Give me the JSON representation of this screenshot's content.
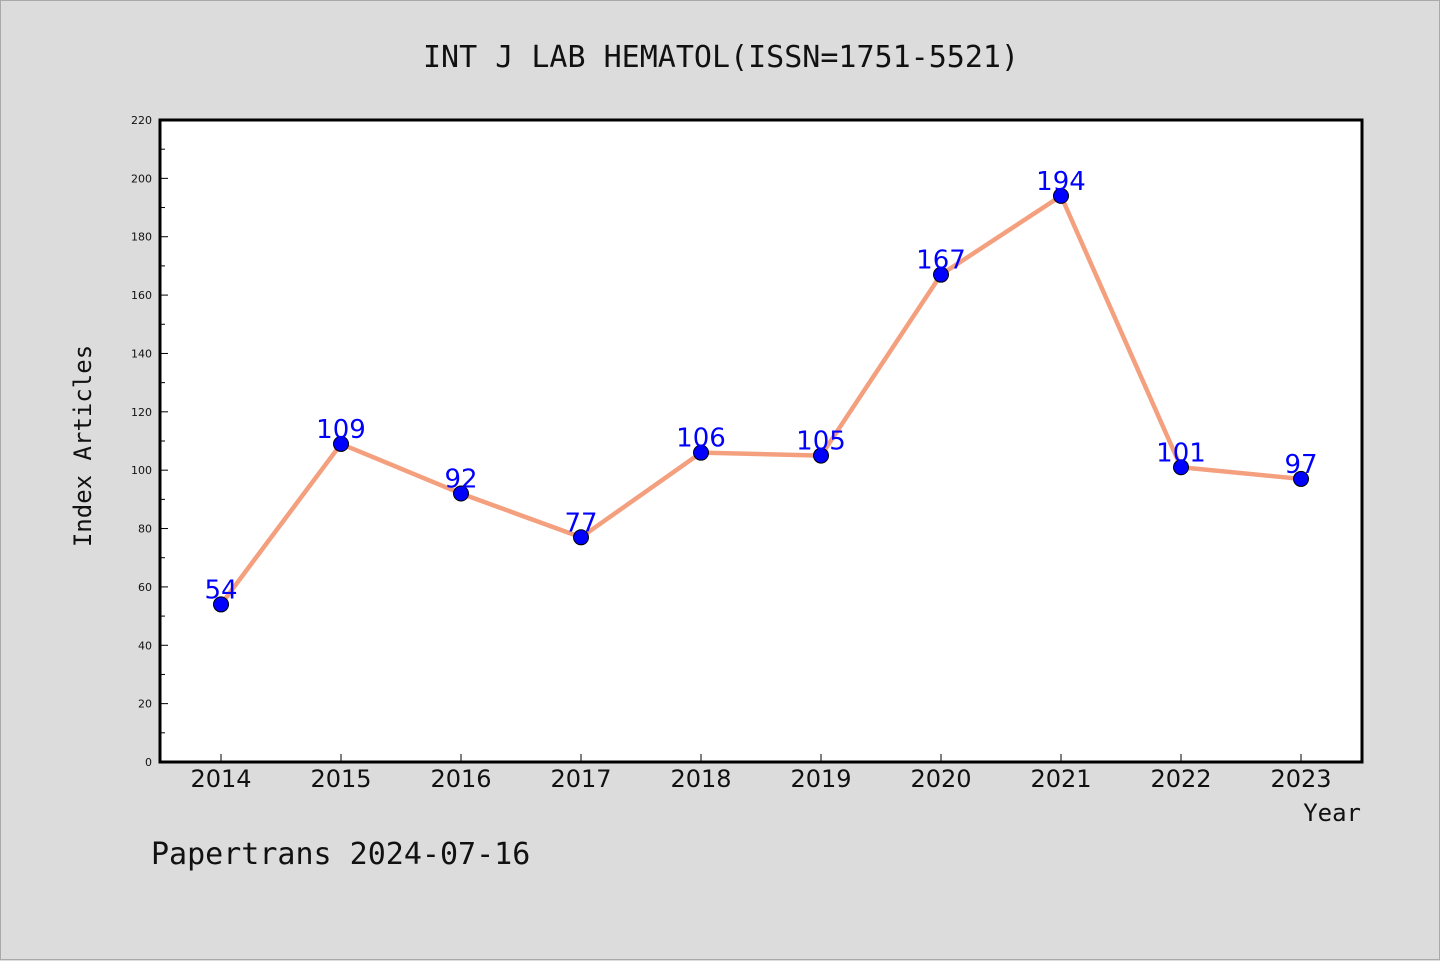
{
  "footer": "Papertrans 2024-07-16",
  "colors": {
    "background": "#dcdcdc",
    "plot_bg": "#ffffff",
    "line": "#f4a07e",
    "marker": "#0000ff",
    "label": "#0000ff"
  },
  "chart_data": {
    "type": "line",
    "title": "INT J LAB HEMATOL(ISSN=1751-5521)",
    "xlabel": "Year",
    "ylabel": "Index Articles",
    "categories": [
      "2014",
      "2015",
      "2016",
      "2017",
      "2018",
      "2019",
      "2020",
      "2021",
      "2022",
      "2023"
    ],
    "series": [
      {
        "values": [
          54,
          109,
          92,
          77,
          106,
          105,
          167,
          194,
          101,
          97
        ]
      }
    ],
    "ylim": [
      0,
      220
    ],
    "yticks": [
      0,
      20,
      40,
      60,
      80,
      100,
      120,
      140,
      160,
      180,
      200,
      220
    ],
    "grid": false,
    "legend": "none",
    "data_labels": true
  }
}
